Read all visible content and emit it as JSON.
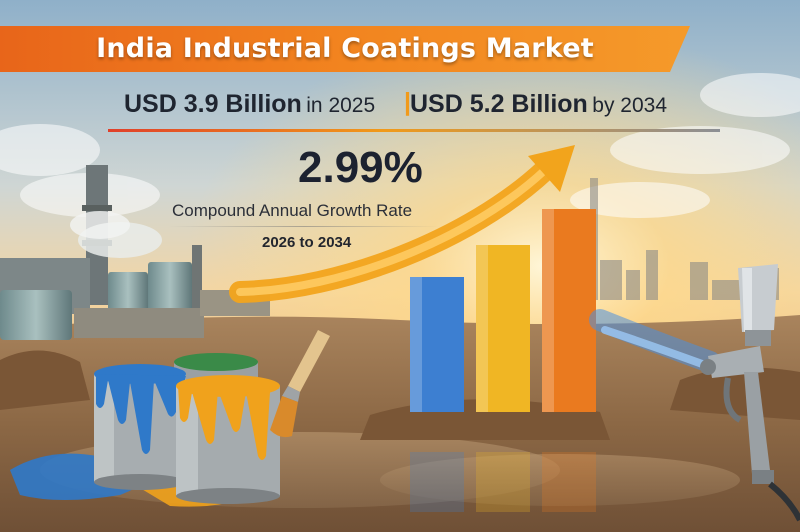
{
  "banner": {
    "title": "India Industrial Coatings Market"
  },
  "figures": {
    "value_2025": "USD 3.9 Billion",
    "value_2025_suffix": "in 2025",
    "separator": "|",
    "value_2034": "USD 5.2 Billion",
    "value_2034_suffix": "by 2034"
  },
  "cagr": {
    "value": "2.99%",
    "label": "Compound Annual Growth Rate",
    "period": "2026 to 2034"
  },
  "growth_bars": [
    {
      "level": 0.55,
      "color": "#3d7fd1"
    },
    {
      "level": 0.68,
      "color": "#f0b624"
    },
    {
      "level": 0.83,
      "color": "#ea7a1f"
    }
  ],
  "paint_cans": [
    {
      "paint": "blue",
      "color": "#2f79c9"
    },
    {
      "paint": "green",
      "color": "#3a8a48"
    },
    {
      "paint": "yellow",
      "color": "#f0a21c"
    }
  ],
  "colors": {
    "banner_orange": "#f07a1c",
    "accent_gold": "#f19a1a",
    "title_text": "#1f2530"
  },
  "icons": [
    "growth-arrow-icon",
    "paint-brush-icon",
    "spray-gun-icon",
    "factory-icon"
  ]
}
